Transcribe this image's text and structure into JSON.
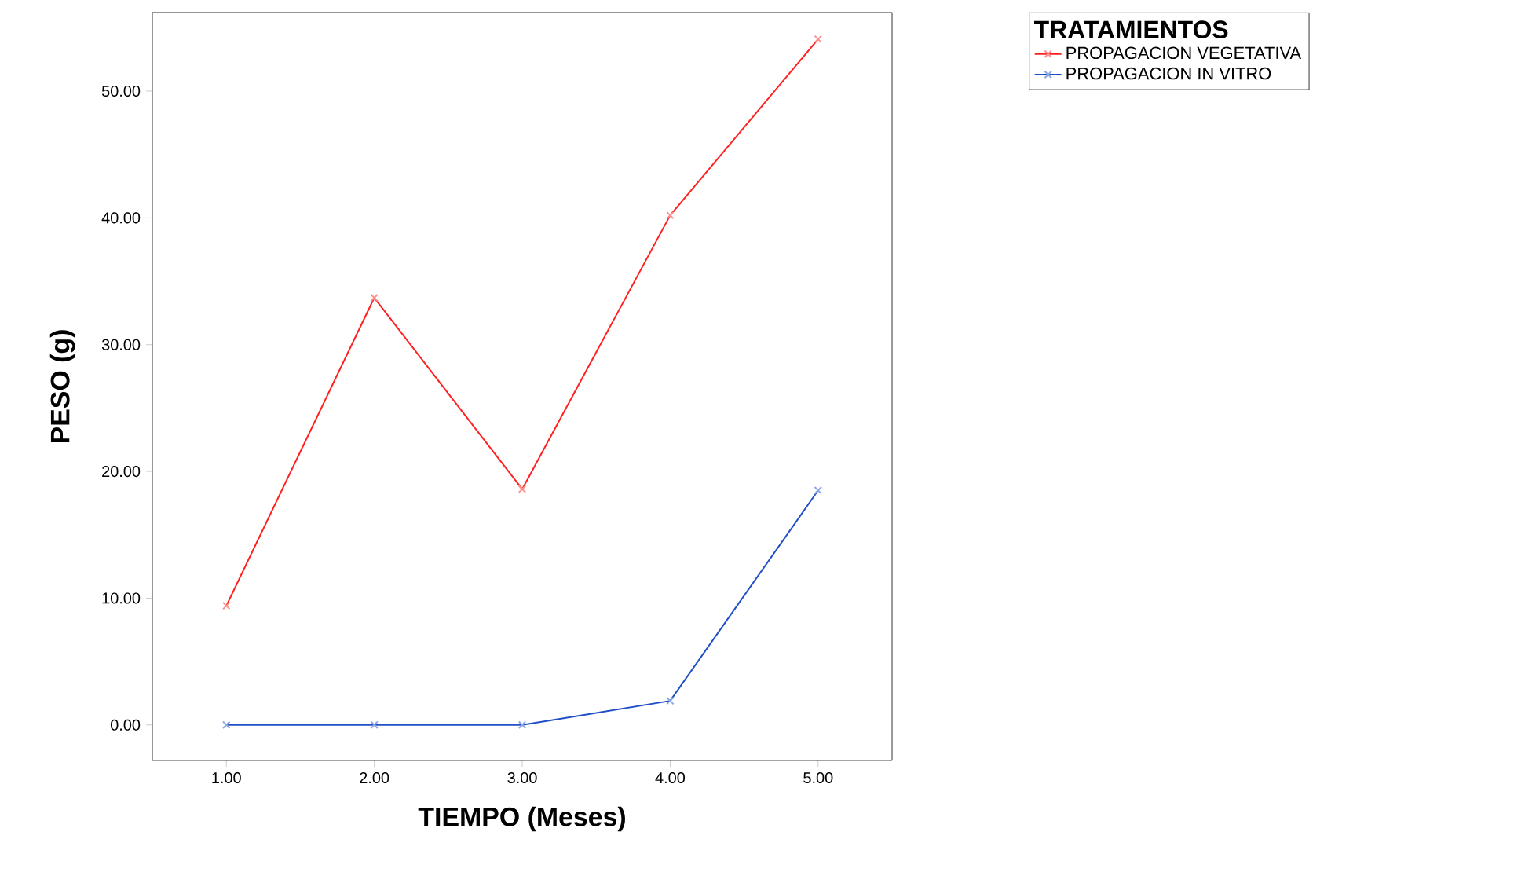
{
  "chart_data": {
    "type": "line",
    "xlabel": "TIEMPO (Meses)",
    "ylabel": "PESO (g)",
    "legend_title": "TRATAMIENTOS",
    "x": [
      1,
      2,
      3,
      4,
      5
    ],
    "series": [
      {
        "name": "PROPAGACION VEGETATIVA",
        "color": "#ff2020",
        "values": [
          9.4,
          33.7,
          18.6,
          40.2,
          54.1
        ]
      },
      {
        "name": "PROPAGACION IN VITRO",
        "color": "#2050c8",
        "values": [
          0,
          0,
          0,
          1.9,
          18.5
        ]
      }
    ],
    "xlim": [
      0.5,
      5.5
    ],
    "ylim": [
      -2.8,
      56.2
    ],
    "xticks": [
      {
        "value": 1,
        "label": "1.00"
      },
      {
        "value": 2,
        "label": "2.00"
      },
      {
        "value": 3,
        "label": "3.00"
      },
      {
        "value": 4,
        "label": "4.00"
      },
      {
        "value": 5,
        "label": "5.00"
      }
    ],
    "yticks": [
      {
        "value": 0,
        "label": "0.00"
      },
      {
        "value": 10,
        "label": "10.00"
      },
      {
        "value": 20,
        "label": "20.00"
      },
      {
        "value": 30,
        "label": "30.00"
      },
      {
        "value": 40,
        "label": "40.00"
      },
      {
        "value": 50,
        "label": "50.00"
      }
    ],
    "grid": false,
    "legend": "top right",
    "marker": "cross",
    "line_style": "solid"
  }
}
